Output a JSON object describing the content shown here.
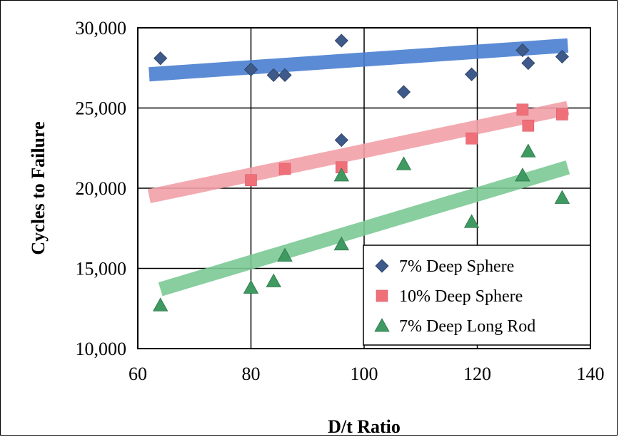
{
  "chart_data": {
    "type": "scatter",
    "xlabel": "D/t Ratio",
    "ylabel": "Cycles to Failure",
    "xlim": [
      60,
      140
    ],
    "ylim": [
      10000,
      30000
    ],
    "x_ticks": [
      60,
      80,
      100,
      120,
      140
    ],
    "x_tick_labels": [
      "60",
      "80",
      "100",
      "120",
      "140"
    ],
    "y_ticks": [
      10000,
      15000,
      20000,
      25000,
      30000
    ],
    "y_tick_labels": [
      "10,000",
      "15,000",
      "20,000",
      "25,000",
      "30,000"
    ],
    "grid": true,
    "legend_position": "bottom-right",
    "series": [
      {
        "name": "7% Deep Sphere",
        "marker": "diamond",
        "color": "#3d5a8a",
        "trend_color": "#4a7fd0",
        "trend": [
          [
            62,
            27100
          ],
          [
            136,
            28900
          ]
        ],
        "points": [
          [
            64,
            28100
          ],
          [
            80,
            27400
          ],
          [
            84,
            27050
          ],
          [
            86,
            27050
          ],
          [
            96,
            29200
          ],
          [
            96,
            23000
          ],
          [
            107,
            26000
          ],
          [
            119,
            27100
          ],
          [
            128,
            28600
          ],
          [
            129,
            27800
          ],
          [
            135,
            28200
          ]
        ]
      },
      {
        "name": "10% Deep Sphere",
        "marker": "square",
        "color": "#f0707a",
        "trend_color": "#f2a0a8",
        "trend": [
          [
            62,
            19500
          ],
          [
            136,
            25000
          ]
        ],
        "points": [
          [
            80,
            20500
          ],
          [
            86,
            21200
          ],
          [
            96,
            21300
          ],
          [
            119,
            23100
          ],
          [
            128,
            24900
          ],
          [
            129,
            23900
          ],
          [
            135,
            24600
          ]
        ]
      },
      {
        "name": "7% Deep Long Rod",
        "marker": "triangle",
        "color": "#3f9a62",
        "trend_color": "#7cc994",
        "trend": [
          [
            64,
            13700
          ],
          [
            136,
            21300
          ]
        ],
        "points": [
          [
            64,
            12700
          ],
          [
            80,
            13800
          ],
          [
            84,
            14200
          ],
          [
            86,
            15800
          ],
          [
            96,
            20800
          ],
          [
            96,
            16500
          ],
          [
            107,
            21500
          ],
          [
            119,
            17900
          ],
          [
            128,
            20800
          ],
          [
            129,
            22300
          ],
          [
            135,
            19400
          ]
        ]
      }
    ]
  }
}
